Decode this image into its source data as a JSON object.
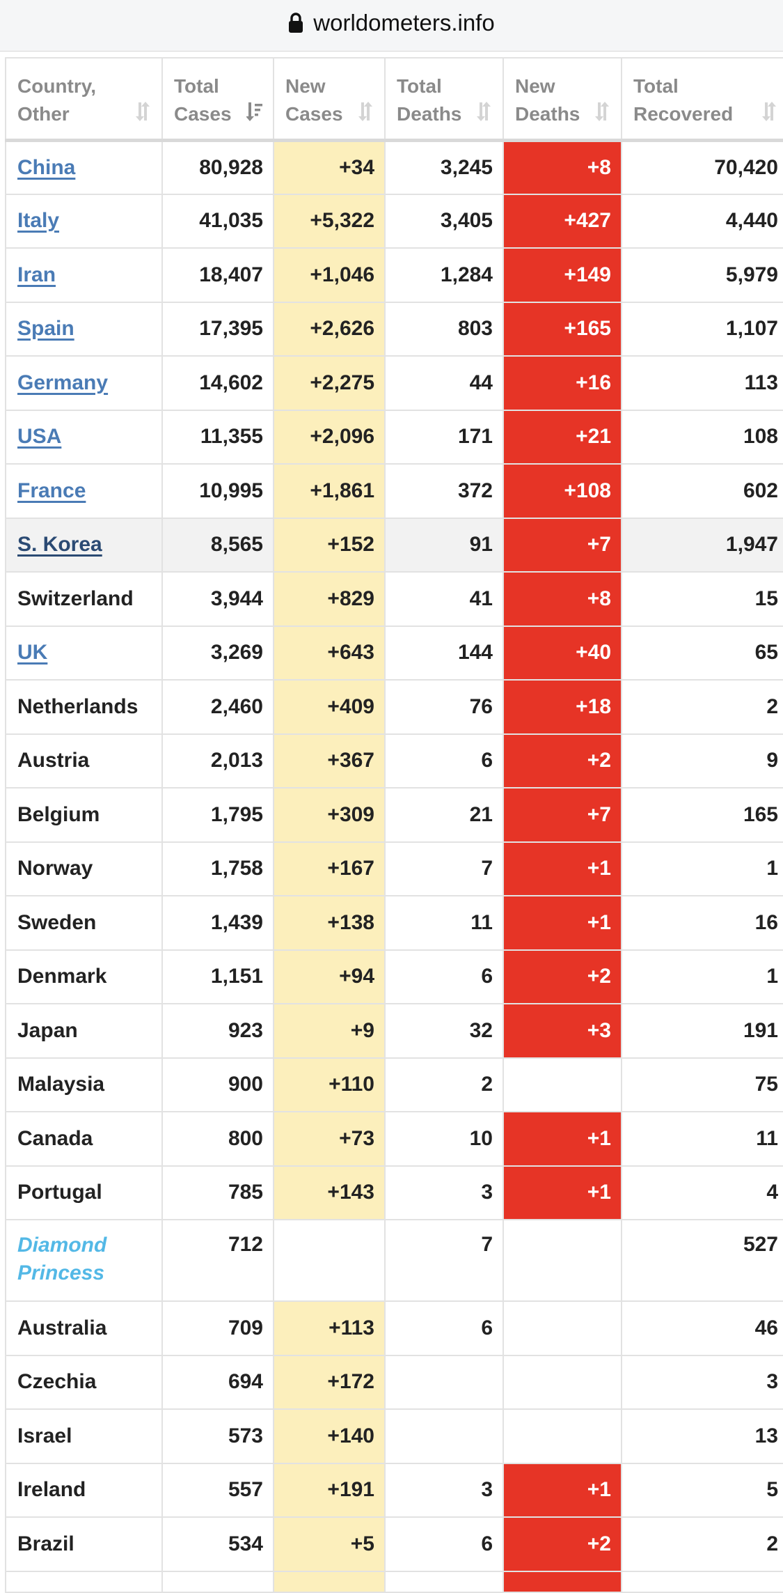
{
  "browser": {
    "url": "worldometers.info"
  },
  "table": {
    "headers": [
      {
        "label": "Country, Other"
      },
      {
        "label": "Total Cases"
      },
      {
        "label": "New Cases"
      },
      {
        "label": "Total Deaths"
      },
      {
        "label": "New Deaths"
      },
      {
        "label": "Total Recovered"
      }
    ],
    "rows": [
      {
        "country": "China",
        "total_cases": "80,928",
        "new_cases": "+34",
        "total_deaths": "3,245",
        "new_deaths": "+8",
        "total_recovered": "70,420",
        "link": true
      },
      {
        "country": "Italy",
        "total_cases": "41,035",
        "new_cases": "+5,322",
        "total_deaths": "3,405",
        "new_deaths": "+427",
        "total_recovered": "4,440",
        "link": true
      },
      {
        "country": "Iran",
        "total_cases": "18,407",
        "new_cases": "+1,046",
        "total_deaths": "1,284",
        "new_deaths": "+149",
        "total_recovered": "5,979",
        "link": true
      },
      {
        "country": "Spain",
        "total_cases": "17,395",
        "new_cases": "+2,626",
        "total_deaths": "803",
        "new_deaths": "+165",
        "total_recovered": "1,107",
        "link": true
      },
      {
        "country": "Germany",
        "total_cases": "14,602",
        "new_cases": "+2,275",
        "total_deaths": "44",
        "new_deaths": "+16",
        "total_recovered": "113",
        "link": true
      },
      {
        "country": "USA",
        "total_cases": "11,355",
        "new_cases": "+2,096",
        "total_deaths": "171",
        "new_deaths": "+21",
        "total_recovered": "108",
        "link": true
      },
      {
        "country": "France",
        "total_cases": "10,995",
        "new_cases": "+1,861",
        "total_deaths": "372",
        "new_deaths": "+108",
        "total_recovered": "602",
        "link": true
      },
      {
        "country": "S. Korea",
        "total_cases": "8,565",
        "new_cases": "+152",
        "total_deaths": "91",
        "new_deaths": "+7",
        "total_recovered": "1,947",
        "link": true,
        "highlight": true
      },
      {
        "country": "Switzerland",
        "total_cases": "3,944",
        "new_cases": "+829",
        "total_deaths": "41",
        "new_deaths": "+8",
        "total_recovered": "15"
      },
      {
        "country": "UK",
        "total_cases": "3,269",
        "new_cases": "+643",
        "total_deaths": "144",
        "new_deaths": "+40",
        "total_recovered": "65",
        "link": true
      },
      {
        "country": "Netherlands",
        "total_cases": "2,460",
        "new_cases": "+409",
        "total_deaths": "76",
        "new_deaths": "+18",
        "total_recovered": "2"
      },
      {
        "country": "Austria",
        "total_cases": "2,013",
        "new_cases": "+367",
        "total_deaths": "6",
        "new_deaths": "+2",
        "total_recovered": "9"
      },
      {
        "country": "Belgium",
        "total_cases": "1,795",
        "new_cases": "+309",
        "total_deaths": "21",
        "new_deaths": "+7",
        "total_recovered": "165"
      },
      {
        "country": "Norway",
        "total_cases": "1,758",
        "new_cases": "+167",
        "total_deaths": "7",
        "new_deaths": "+1",
        "total_recovered": "1"
      },
      {
        "country": "Sweden",
        "total_cases": "1,439",
        "new_cases": "+138",
        "total_deaths": "11",
        "new_deaths": "+1",
        "total_recovered": "16"
      },
      {
        "country": "Denmark",
        "total_cases": "1,151",
        "new_cases": "+94",
        "total_deaths": "6",
        "new_deaths": "+2",
        "total_recovered": "1"
      },
      {
        "country": "Japan",
        "total_cases": "923",
        "new_cases": "+9",
        "total_deaths": "32",
        "new_deaths": "+3",
        "total_recovered": "191"
      },
      {
        "country": "Malaysia",
        "total_cases": "900",
        "new_cases": "+110",
        "total_deaths": "2",
        "new_deaths": "",
        "total_recovered": "75"
      },
      {
        "country": "Canada",
        "total_cases": "800",
        "new_cases": "+73",
        "total_deaths": "10",
        "new_deaths": "+1",
        "total_recovered": "11"
      },
      {
        "country": "Portugal",
        "total_cases": "785",
        "new_cases": "+143",
        "total_deaths": "3",
        "new_deaths": "+1",
        "total_recovered": "4"
      },
      {
        "country": "Diamond Princess",
        "total_cases": "712",
        "new_cases": "",
        "total_deaths": "7",
        "new_deaths": "",
        "total_recovered": "527",
        "ship": true
      },
      {
        "country": "Australia",
        "total_cases": "709",
        "new_cases": "+113",
        "total_deaths": "6",
        "new_deaths": "",
        "total_recovered": "46"
      },
      {
        "country": "Czechia",
        "total_cases": "694",
        "new_cases": "+172",
        "total_deaths": "",
        "new_deaths": "",
        "total_recovered": "3"
      },
      {
        "country": "Israel",
        "total_cases": "573",
        "new_cases": "+140",
        "total_deaths": "",
        "new_deaths": "",
        "total_recovered": "13"
      },
      {
        "country": "Ireland",
        "total_cases": "557",
        "new_cases": "+191",
        "total_deaths": "3",
        "new_deaths": "+1",
        "total_recovered": "5"
      },
      {
        "country": "Brazil",
        "total_cases": "534",
        "new_cases": "+5",
        "total_deaths": "6",
        "new_deaths": "+2",
        "total_recovered": "2"
      },
      {
        "country": "",
        "total_cases": "",
        "new_cases": "",
        "total_deaths": "",
        "new_deaths": "",
        "total_recovered": "",
        "partial": true
      }
    ]
  },
  "colors": {
    "new_cases_bg": "#fcefbc",
    "new_deaths_bg": "#e63426",
    "link": "#4a7bb5",
    "ship_name": "#53b8e6"
  },
  "icons": {
    "lock": "lock-icon",
    "sort": "sort-icon",
    "sort_active": "sort-desc-active-icon"
  }
}
